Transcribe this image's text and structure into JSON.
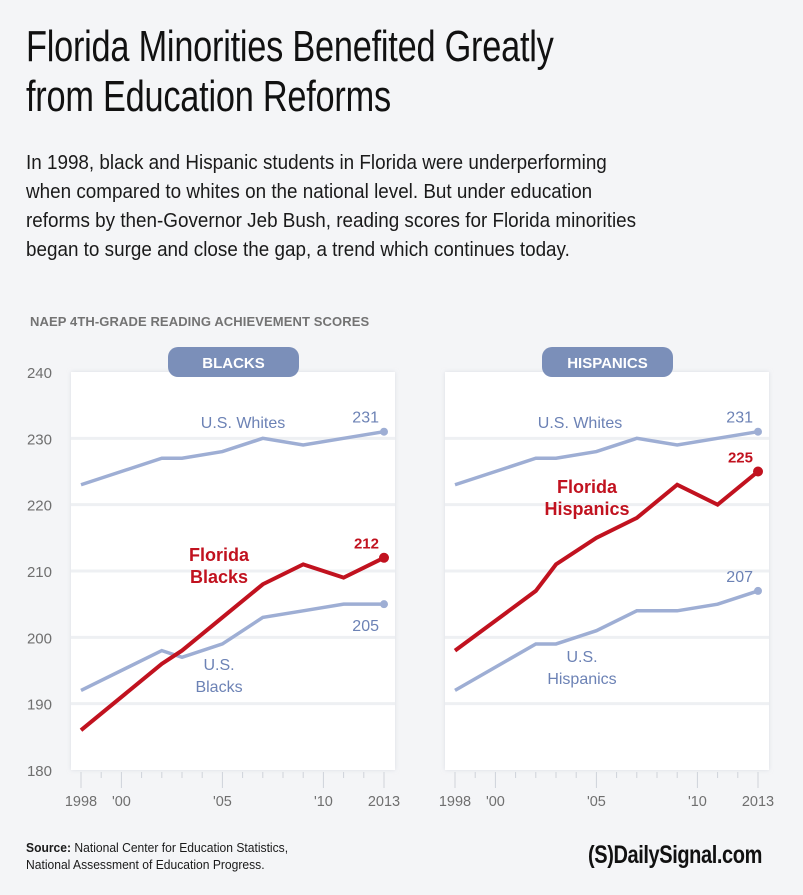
{
  "header": {
    "title_line1": "Florida Minorities Benefited Greatly",
    "title_line2": "from Education Reforms",
    "intro_lines": [
      "In 1998, black and Hispanic students in Florida were underperforming",
      "when compared to whites on the national level. But under education",
      "reforms by then-Governor Jeb Bush, reading scores for Florida minorities",
      "began to surge and close the gap, a trend which continues today."
    ]
  },
  "chart_heading": "NAEP 4TH-GRADE READING ACHIEVEMENT SCORES",
  "colors": {
    "florida": "#c1121f",
    "us": "#9eaed4",
    "us_label": "#6c82b5",
    "pill": "#7b8fb9",
    "axis_text": "#6f6f6f",
    "grid": "#eef0f3"
  },
  "chart_data": [
    {
      "type": "line",
      "title": "BLACKS",
      "ylim": [
        180,
        240
      ],
      "yticks": [
        180,
        190,
        200,
        210,
        220,
        230,
        240
      ],
      "xlim": [
        1998,
        2013
      ],
      "xticks": [
        1998,
        2000,
        2005,
        2010,
        2013
      ],
      "xtick_labels": [
        "1998",
        "'00",
        "'05",
        "'10",
        "2013"
      ],
      "grid": true,
      "series": [
        {
          "name": "U.S. Whites",
          "label": "U.S. Whites",
          "end_label": "231",
          "style": "us",
          "x": [
            1998,
            2002,
            2003,
            2005,
            2007,
            2009,
            2011,
            2013
          ],
          "values": [
            223,
            227,
            227,
            228,
            230,
            229,
            230,
            231
          ]
        },
        {
          "name": "Florida Blacks",
          "label": "Florida|Blacks",
          "end_label": "212",
          "style": "florida",
          "x": [
            1998,
            2002,
            2003,
            2005,
            2007,
            2009,
            2011,
            2013
          ],
          "values": [
            186,
            196,
            198,
            203,
            208,
            211,
            209,
            212
          ]
        },
        {
          "name": "U.S. Blacks",
          "label": "U.S.|Blacks",
          "end_label": "205",
          "style": "us",
          "x": [
            1998,
            2002,
            2003,
            2005,
            2007,
            2009,
            2011,
            2013
          ],
          "values": [
            192,
            198,
            197,
            199,
            203,
            204,
            205,
            205
          ]
        }
      ]
    },
    {
      "type": "line",
      "title": "HISPANICS",
      "ylim": [
        180,
        240
      ],
      "yticks": [
        180,
        190,
        200,
        210,
        220,
        230,
        240
      ],
      "xlim": [
        1998,
        2013
      ],
      "xticks": [
        1998,
        2000,
        2005,
        2010,
        2013
      ],
      "xtick_labels": [
        "1998",
        "'00",
        "'05",
        "'10",
        "2013"
      ],
      "grid": true,
      "series": [
        {
          "name": "U.S. Whites",
          "label": "U.S. Whites",
          "end_label": "231",
          "style": "us",
          "x": [
            1998,
            2002,
            2003,
            2005,
            2007,
            2009,
            2011,
            2013
          ],
          "values": [
            223,
            227,
            227,
            228,
            230,
            229,
            230,
            231
          ]
        },
        {
          "name": "Florida Hispanics",
          "label": "Florida|Hispanics",
          "end_label": "225",
          "style": "florida",
          "x": [
            1998,
            2002,
            2003,
            2005,
            2007,
            2009,
            2011,
            2013
          ],
          "values": [
            198,
            207,
            211,
            215,
            218,
            223,
            220,
            225
          ]
        },
        {
          "name": "U.S. Hispanics",
          "label": "U.S.|Hispanics",
          "end_label": "207",
          "style": "us",
          "x": [
            1998,
            2002,
            2003,
            2005,
            2007,
            2009,
            2011,
            2013
          ],
          "values": [
            192,
            199,
            199,
            201,
            204,
            204,
            205,
            207
          ]
        }
      ]
    }
  ],
  "footer": {
    "source_label": "Source:",
    "source_line1": " National Center for Education Statistics,",
    "source_line2": "National Assessment of Education Progress.",
    "logo": "(S)DailySignal.com"
  }
}
